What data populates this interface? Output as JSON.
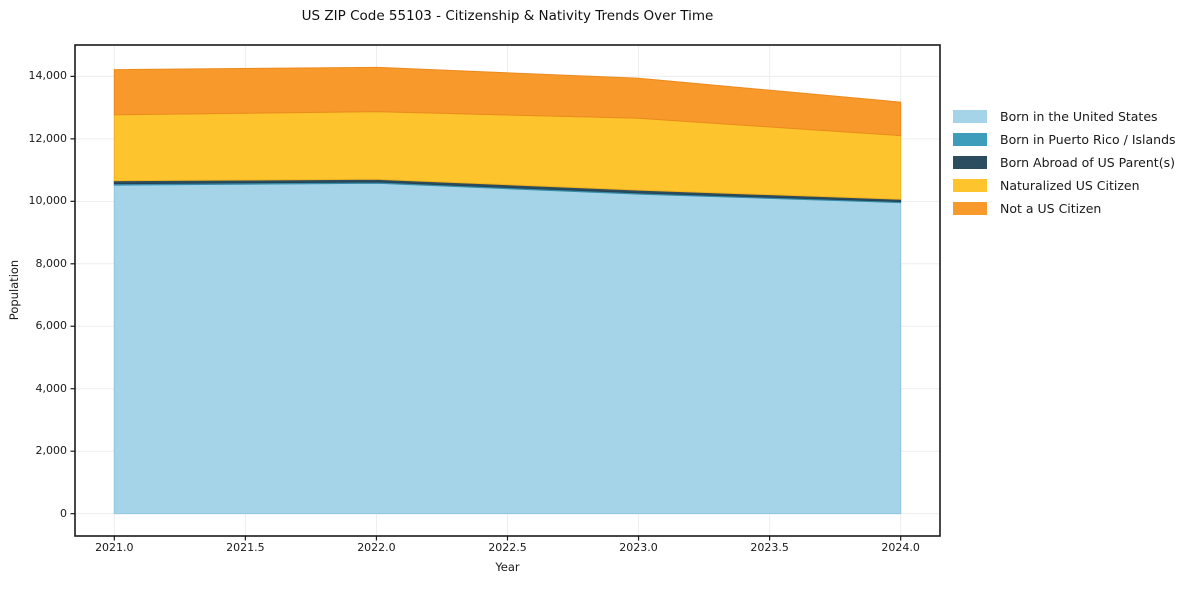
{
  "chart_data": {
    "type": "area",
    "stacked": true,
    "title": "US ZIP Code 55103 - Citizenship & Nativity Trends Over Time",
    "xlabel": "Year",
    "ylabel": "Population",
    "x": [
      2021,
      2022,
      2023,
      2024
    ],
    "series": [
      {
        "name": "Born in the United States",
        "color": "#a5d3e8",
        "edge": "#8ec6de",
        "values": [
          10520,
          10580,
          10230,
          9960
        ]
      },
      {
        "name": "Born in Puerto Rico / Islands",
        "color": "#3e9dbb",
        "edge": "#358ba8",
        "values": [
          45,
          40,
          40,
          35
        ]
      },
      {
        "name": "Born Abroad of US Parent(s)",
        "color": "#2b4d5f",
        "edge": "#24414f",
        "values": [
          95,
          85,
          90,
          70
        ]
      },
      {
        "name": "Naturalized US Citizen",
        "color": "#fdc42e",
        "edge": "#f0b21e",
        "values": [
          2110,
          2165,
          2300,
          2040
        ]
      },
      {
        "name": "Not a US Citizen",
        "color": "#f8992c",
        "edge": "#ec8a1c",
        "values": [
          1445,
          1420,
          1280,
          1070
        ]
      }
    ],
    "totals": [
      14215,
      14290,
      13940,
      13175
    ],
    "xlim": [
      2020.85,
      2024.15
    ],
    "ylim": [
      -715,
      15005
    ],
    "x_ticks": [
      2021.0,
      2021.5,
      2022.0,
      2022.5,
      2023.0,
      2023.5,
      2024.0
    ],
    "x_tick_labels": [
      "2021.0",
      "2021.5",
      "2022.0",
      "2022.5",
      "2023.0",
      "2023.5",
      "2024.0"
    ],
    "y_ticks": [
      0,
      2000,
      4000,
      6000,
      8000,
      10000,
      12000,
      14000
    ],
    "y_tick_labels": [
      "0",
      "2,000",
      "4,000",
      "6,000",
      "8,000",
      "10,000",
      "12,000",
      "14,000"
    ],
    "grid": true,
    "legend_position": "outside-upper-right",
    "axis": {
      "spine_color": "#1a1a1a",
      "grid_color": "#ededed",
      "tick_color": "#1a1a1a",
      "text_color": "#1a1a1a",
      "background": "#ffffff"
    }
  }
}
